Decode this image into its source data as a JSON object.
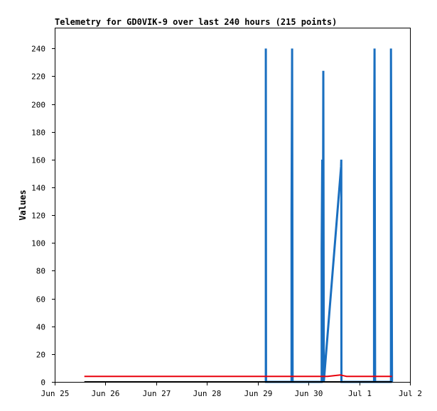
{
  "chart_data": {
    "type": "line",
    "title": "Telemetry for GD0VIK-9 over last 240 hours (215 points)",
    "xlabel": "",
    "ylabel": "Values",
    "xlim": [
      "2025-06-25T00:00",
      "2025-07-02T00:00"
    ],
    "ylim": [
      0,
      255
    ],
    "x_tick_labels": [
      "Jun 25",
      "Jun 26",
      "Jun 27",
      "Jun 28",
      "Jun 29",
      "Jun 30",
      "Jul 1",
      "Jul 2"
    ],
    "y_tick_labels": [
      "0",
      "20",
      "40",
      "60",
      "80",
      "100",
      "120",
      "140",
      "160",
      "180",
      "200",
      "220",
      "240"
    ],
    "y_ticks": [
      0,
      20,
      40,
      60,
      80,
      100,
      120,
      140,
      160,
      180,
      200,
      220,
      240
    ],
    "grid": false,
    "legend": "none",
    "series": [
      {
        "color": "#1a6fc0",
        "points": [
          [
            "2025-06-29T03:50",
            0
          ],
          [
            "2025-06-29T03:50",
            240
          ],
          [
            "2025-06-29T03:55",
            0
          ],
          [
            "2025-06-29T16:00",
            0
          ],
          [
            "2025-06-29T16:00",
            120
          ],
          [
            "2025-06-29T16:15",
            240
          ],
          [
            "2025-06-29T16:30",
            0
          ],
          [
            "2025-06-30T06:15",
            0
          ],
          [
            "2025-06-30T06:15",
            96
          ],
          [
            "2025-06-30T06:30",
            160
          ],
          [
            "2025-06-30T06:45",
            0
          ],
          [
            "2025-06-30T07:00",
            224
          ],
          [
            "2025-06-30T07:15",
            0
          ],
          [
            "2025-06-30T15:25",
            155
          ],
          [
            "2025-06-30T15:30",
            160
          ],
          [
            "2025-06-30T15:35",
            0
          ],
          [
            "2025-07-01T07:00",
            0
          ],
          [
            "2025-07-01T07:00",
            144
          ],
          [
            "2025-07-01T07:15",
            240
          ],
          [
            "2025-07-01T07:30",
            0
          ],
          [
            "2025-07-01T15:00",
            0
          ],
          [
            "2025-07-01T15:00",
            240
          ],
          [
            "2025-07-01T15:15",
            120
          ],
          [
            "2025-07-01T15:30",
            0
          ]
        ]
      },
      {
        "color": "#e8000b",
        "points": [
          [
            "2025-06-25T14:00",
            4
          ],
          [
            "2025-06-30T09:00",
            4
          ],
          [
            "2025-06-30T12:00",
            4.5
          ],
          [
            "2025-06-30T15:00",
            5
          ],
          [
            "2025-06-30T18:00",
            4
          ],
          [
            "2025-07-01T15:30",
            4
          ]
        ]
      },
      {
        "color": "#000000",
        "points": [
          [
            "2025-06-25T14:00",
            0
          ],
          [
            "2025-07-01T15:30",
            0
          ]
        ]
      }
    ]
  }
}
